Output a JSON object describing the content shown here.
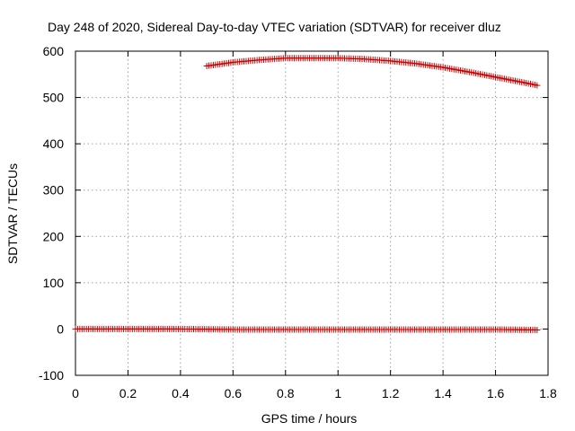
{
  "chart_data": {
    "type": "scatter",
    "title": "Day 248 of 2020, Sidereal Day-to-day VTEC variation (SDTVAR) for receiver dluz",
    "xlabel": "GPS time / hours",
    "ylabel": "SDTVAR / TECUs",
    "xlim": [
      0,
      1.8
    ],
    "ylim": [
      -100,
      600
    ],
    "xticks": [
      0,
      0.2,
      0.4,
      0.6,
      0.8,
      1,
      1.2,
      1.4,
      1.6,
      1.8
    ],
    "xtick_labels": [
      "0",
      "0.2",
      "0.4",
      "0.6",
      "0.8",
      "1",
      "1.2",
      "1.4",
      "1.6",
      "1.8"
    ],
    "yticks": [
      -100,
      0,
      100,
      200,
      300,
      400,
      500,
      600
    ],
    "ytick_labels": [
      "-100",
      "0",
      "100",
      "200",
      "300",
      "400",
      "500",
      "600"
    ],
    "grid": true,
    "marker": "plus",
    "color": "#cc0000",
    "series": [
      {
        "name": "upper arc",
        "x": [
          0.5,
          0.6,
          0.7,
          0.8,
          0.9,
          1.0,
          1.1,
          1.2,
          1.3,
          1.4,
          1.5,
          1.6,
          1.7,
          1.76
        ],
        "y": [
          568,
          576,
          581,
          585,
          585,
          585,
          583,
          579,
          573,
          565,
          555,
          544,
          533,
          526
        ]
      },
      {
        "name": "near-zero band",
        "x": [
          0.0,
          0.2,
          0.4,
          0.6,
          0.8,
          1.0,
          1.2,
          1.4,
          1.6,
          1.76
        ],
        "y": [
          0,
          0,
          0,
          -1,
          -1,
          -1,
          -1,
          -1,
          -1,
          -2
        ]
      }
    ]
  }
}
